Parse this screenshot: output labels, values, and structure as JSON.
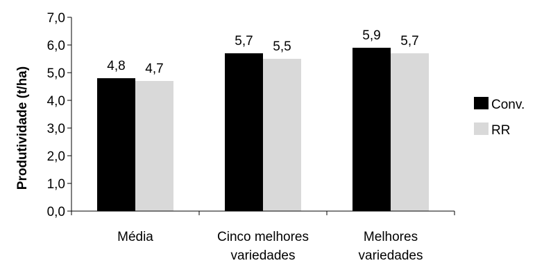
{
  "chart_data": {
    "type": "bar",
    "title": "",
    "xlabel": "",
    "ylabel": "Produtividade (t/ha)",
    "ylim": [
      0,
      7
    ],
    "yticks": [
      "0,0",
      "1,0",
      "2,0",
      "3,0",
      "4,0",
      "5,0",
      "6,0",
      "7,0"
    ],
    "grid": false,
    "legend_position": "right",
    "categories": [
      [
        "Média"
      ],
      [
        "Cinco melhores",
        "variedades"
      ],
      [
        "Melhores",
        "variedades"
      ]
    ],
    "series": [
      {
        "name": "Conv.",
        "color": "#000000",
        "values": [
          4.8,
          5.7,
          5.9
        ],
        "labels": [
          "4,8",
          "5,7",
          "5,9"
        ]
      },
      {
        "name": "RR",
        "color": "#d9d9d9",
        "values": [
          4.7,
          5.5,
          5.7
        ],
        "labels": [
          "4,7",
          "5,5",
          "5,7"
        ]
      }
    ]
  }
}
